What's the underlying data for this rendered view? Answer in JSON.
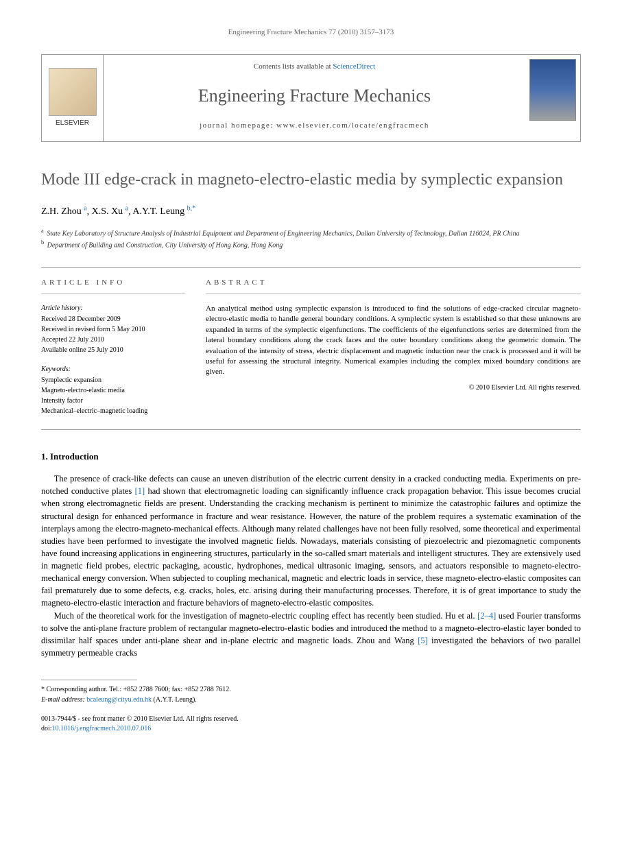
{
  "running_header": "Engineering Fracture Mechanics 77 (2010) 3157–3173",
  "header": {
    "publisher_name": "ELSEVIER",
    "contents_prefix": "Contents lists available at ",
    "contents_link": "ScienceDirect",
    "journal_name": "Engineering Fracture Mechanics",
    "homepage_label": "journal homepage: www.elsevier.com/locate/engfracmech"
  },
  "article": {
    "title": "Mode III edge-crack in magneto-electro-elastic media by symplectic expansion",
    "authors": [
      {
        "name": "Z.H. Zhou",
        "marker": "a"
      },
      {
        "name": "X.S. Xu",
        "marker": "a"
      },
      {
        "name": "A.Y.T. Leung",
        "marker": "b,*"
      }
    ],
    "affiliations": [
      {
        "marker": "a",
        "text": "State Key Laboratory of Structure Analysis of Industrial Equipment and Department of Engineering Mechanics, Dalian University of Technology, Dalian 116024, PR China"
      },
      {
        "marker": "b",
        "text": "Department of Building and Construction, City University of Hong Kong, Hong Kong"
      }
    ]
  },
  "info": {
    "heading": "ARTICLE INFO",
    "history_label": "Article history:",
    "history": [
      "Received 28 December 2009",
      "Received in revised form 5 May 2010",
      "Accepted 22 July 2010",
      "Available online 25 July 2010"
    ],
    "keywords_label": "Keywords:",
    "keywords": [
      "Symplectic expansion",
      "Magneto-electro-elastic media",
      "Intensity factor",
      "Mechanical–electric–magnetic loading"
    ]
  },
  "abstract": {
    "heading": "ABSTRACT",
    "text": "An analytical method using symplectic expansion is introduced to find the solutions of edge-cracked circular magneto-electro-elastic media to handle general boundary conditions. A symplectic system is established so that these unknowns are expanded in terms of the symplectic eigenfunctions. The coefficients of the eigenfunctions series are determined from the lateral boundary conditions along the crack faces and the outer boundary conditions along the geometric domain. The evaluation of the intensity of stress, electric displacement and magnetic induction near the crack is processed and it will be useful for assessing the structural integrity. Numerical examples including the complex mixed boundary conditions are given.",
    "copyright": "© 2010 Elsevier Ltd. All rights reserved."
  },
  "sections": {
    "intro_heading": "1. Introduction",
    "intro_para1_a": "The presence of crack-like defects can cause an uneven distribution of the electric current density in a cracked conducting media. Experiments on pre-notched conductive plates ",
    "intro_ref1": "[1]",
    "intro_para1_b": " had shown that electromagnetic loading can significantly influence crack propagation behavior. This issue becomes crucial when strong electromagnetic fields are present. Understanding the cracking mechanism is pertinent to minimize the catastrophic failures and optimize the structural design for enhanced performance in fracture and wear resistance. However, the nature of the problem requires a systematic examination of the interplays among the electro-magneto-mechanical effects. Although many related challenges have not been fully resolved, some theoretical and experimental studies have been performed to investigate the involved magnetic fields. Nowadays, materials consisting of piezoelectric and piezomagnetic components have found increasing applications in engineering structures, particularly in the so-called smart materials and intelligent structures. They are extensively used in magnetic field probes, electric packaging, acoustic, hydrophones, medical ultrasonic imaging, sensors, and actuators responsible to magneto-electro-mechanical energy conversion. When subjected to coupling mechanical, magnetic and electric loads in service, these magneto-electro-elastic composites can fail prematurely due to some defects, e.g. cracks, holes, etc. arising during their manufacturing processes. Therefore, it is of great importance to study the magneto-electro-elastic interaction and fracture behaviors of magneto-electro-elastic composites.",
    "intro_para2_a": "Much of the theoretical work for the investigation of magneto-electric coupling effect has recently been studied. Hu et al. ",
    "intro_ref2": "[2–4]",
    "intro_para2_b": " used Fourier transforms to solve the anti-plane fracture problem of rectangular magneto-electro-elastic bodies and introduced the method to a magneto-electro-elastic layer bonded to dissimilar half spaces under anti-plane shear and in-plane electric and magnetic loads. Zhou and Wang ",
    "intro_ref3": "[5]",
    "intro_para2_c": " investigated the behaviors of two parallel symmetry permeable cracks"
  },
  "footnote": {
    "corr_label": "* Corresponding author. Tel.: +852 2788 7600; fax: +852 2788 7612.",
    "email_label": "E-mail address:",
    "email": "bcaleung@cityu.edu.hk",
    "email_suffix": "(A.Y.T. Leung)."
  },
  "footer": {
    "issn_line": "0013-7944/$ - see front matter © 2010 Elsevier Ltd. All rights reserved.",
    "doi_label": "doi:",
    "doi": "10.1016/j.engfracmech.2010.07.016"
  }
}
